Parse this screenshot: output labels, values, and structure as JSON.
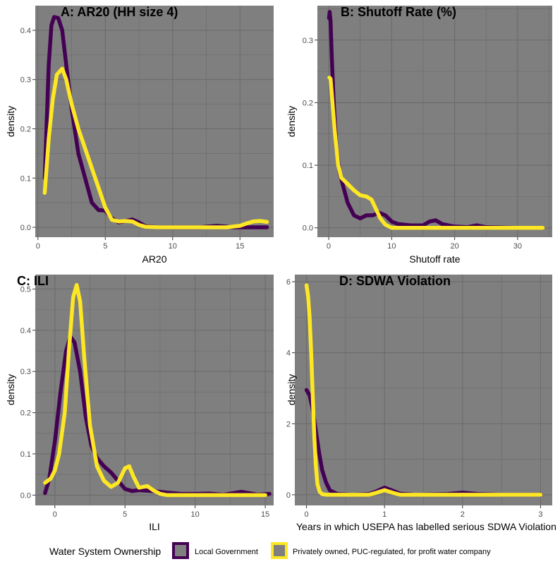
{
  "chart_data": [
    {
      "type": "line",
      "title": "A: AR20 (HH size 4)",
      "xlabel": "AR20",
      "ylabel": "density",
      "xlim": [
        -0.2,
        17.5
      ],
      "ylim": [
        -0.02,
        0.45
      ],
      "xticks": [
        0,
        5,
        10,
        15
      ],
      "yticks": [
        0.0,
        0.1,
        0.2,
        0.3,
        0.4
      ],
      "ytick_labels": [
        "0.0",
        "0.1",
        "0.2",
        "0.3",
        "0.4"
      ],
      "series": [
        {
          "name": "Local Government",
          "color": "#440154",
          "x": [
            0.5,
            0.8,
            1.0,
            1.2,
            1.5,
            1.8,
            2.1,
            2.5,
            3.0,
            3.5,
            4.0,
            4.5,
            5.0,
            5.5,
            6.0,
            6.5,
            7.0,
            7.5,
            8.0,
            9.0,
            10.0,
            12.0,
            13.3,
            14.5,
            16.0,
            17.0
          ],
          "y": [
            0.1,
            0.33,
            0.41,
            0.427,
            0.425,
            0.4,
            0.33,
            0.24,
            0.15,
            0.1,
            0.05,
            0.035,
            0.034,
            0.018,
            0.01,
            0.013,
            0.016,
            0.01,
            0.002,
            0.0,
            0.0,
            0.0,
            0.003,
            0.0,
            0.0,
            0.0
          ]
        },
        {
          "name": "Privately owned, PUC-regulated, for profit water company",
          "color": "#fde725",
          "x": [
            0.5,
            0.8,
            1.1,
            1.4,
            1.8,
            2.1,
            2.5,
            3.0,
            3.5,
            4.0,
            4.5,
            5.0,
            5.5,
            6.0,
            6.5,
            7.0,
            7.5,
            8.0,
            9.0,
            10.0,
            12.0,
            14.0,
            15.0,
            15.5,
            16.0,
            16.5,
            17.0
          ],
          "y": [
            0.07,
            0.18,
            0.26,
            0.31,
            0.322,
            0.3,
            0.25,
            0.2,
            0.16,
            0.12,
            0.08,
            0.04,
            0.015,
            0.012,
            0.013,
            0.012,
            0.005,
            0.001,
            0.0,
            0.0,
            0.0,
            0.0,
            0.003,
            0.008,
            0.012,
            0.013,
            0.011
          ]
        }
      ]
    },
    {
      "type": "line",
      "title": "B: Shutoff Rate (%)",
      "xlabel": "Shutoff rate",
      "ylabel": "density",
      "xlim": [
        -1.8,
        35.5
      ],
      "ylim": [
        -0.015,
        0.355
      ],
      "xticks": [
        0,
        10,
        20,
        30
      ],
      "yticks": [
        0.0,
        0.1,
        0.2,
        0.3
      ],
      "ytick_labels": [
        "0.0",
        "0.1",
        "0.2",
        "0.3"
      ],
      "series": [
        {
          "name": "Local Government",
          "color": "#440154",
          "x": [
            0.05,
            0.15,
            0.3,
            0.5,
            0.8,
            1.2,
            1.7,
            2.2,
            3.0,
            4.0,
            5.0,
            6.0,
            7.0,
            8.0,
            9.0,
            10.0,
            11.0,
            13.0,
            15.0,
            16.0,
            17.0,
            18.0,
            20.0,
            22.0,
            23.5,
            25.0,
            30.0,
            34.0
          ],
          "y": [
            0.335,
            0.345,
            0.33,
            0.27,
            0.2,
            0.13,
            0.09,
            0.07,
            0.04,
            0.02,
            0.015,
            0.02,
            0.02,
            0.024,
            0.02,
            0.01,
            0.006,
            0.004,
            0.004,
            0.01,
            0.012,
            0.006,
            0.002,
            0.001,
            0.004,
            0.001,
            0.0,
            0.0
          ]
        },
        {
          "name": "Privately owned, PUC-regulated, for profit water company",
          "color": "#fde725",
          "x": [
            0.1,
            0.3,
            0.6,
            1.0,
            1.5,
            2.0,
            2.5,
            3.0,
            4.0,
            5.0,
            6.0,
            6.8,
            7.5,
            8.2,
            9.0,
            10.0,
            12.0,
            15.0,
            20.0,
            25.0,
            30.0,
            34.0
          ],
          "y": [
            0.24,
            0.238,
            0.2,
            0.15,
            0.1,
            0.08,
            0.075,
            0.07,
            0.06,
            0.052,
            0.05,
            0.045,
            0.03,
            0.015,
            0.005,
            0.0,
            0.0,
            0.0,
            0.0,
            0.0,
            0.0,
            0.0
          ]
        }
      ]
    },
    {
      "type": "line",
      "title": "C: ILI",
      "xlabel": "ILI",
      "ylabel": "density",
      "xlim": [
        -1.4,
        15.6
      ],
      "ylim": [
        -0.025,
        0.535
      ],
      "xticks": [
        0,
        5,
        10,
        15
      ],
      "yticks": [
        0.0,
        0.1,
        0.2,
        0.3,
        0.4,
        0.5
      ],
      "ytick_labels": [
        "0.0",
        "0.1",
        "0.2",
        "0.3",
        "0.4",
        "0.5"
      ],
      "series": [
        {
          "name": "Local Government",
          "color": "#440154",
          "x": [
            -0.7,
            -0.4,
            0.0,
            0.4,
            0.8,
            1.1,
            1.4,
            1.8,
            2.2,
            2.6,
            3.0,
            3.5,
            4.0,
            4.5,
            5.0,
            5.5,
            6.0,
            7.0,
            8.0,
            9.0,
            10.0,
            11.0,
            12.0,
            13.3,
            14.5,
            15.3
          ],
          "y": [
            0.005,
            0.04,
            0.13,
            0.25,
            0.35,
            0.385,
            0.37,
            0.3,
            0.19,
            0.12,
            0.09,
            0.07,
            0.055,
            0.035,
            0.015,
            0.01,
            0.012,
            0.01,
            0.006,
            0.003,
            0.003,
            0.004,
            0.001,
            0.008,
            0.001,
            0.003
          ]
        },
        {
          "name": "Privately owned, PUC-regulated, for profit water company",
          "color": "#fde725",
          "x": [
            -0.7,
            -0.3,
            0.0,
            0.3,
            0.7,
            1.0,
            1.3,
            1.55,
            1.8,
            2.1,
            2.5,
            3.0,
            3.5,
            4.0,
            4.5,
            5.0,
            5.3,
            5.6,
            6.0,
            6.3,
            6.6,
            7.0,
            7.5,
            8.0,
            9.0,
            10.0,
            12.0,
            15.0
          ],
          "y": [
            0.03,
            0.04,
            0.06,
            0.1,
            0.2,
            0.35,
            0.48,
            0.51,
            0.47,
            0.33,
            0.17,
            0.07,
            0.035,
            0.02,
            0.03,
            0.065,
            0.07,
            0.045,
            0.018,
            0.02,
            0.022,
            0.012,
            0.003,
            0.0,
            0.0,
            0.0,
            0.0,
            0.0
          ]
        }
      ]
    },
    {
      "type": "line",
      "title": "D: SDWA Violation",
      "xlabel": "Years in which USEPA has labelled serious SDWA Violation",
      "ylabel": "density",
      "xlim": [
        -0.15,
        3.15
      ],
      "ylim": [
        -0.3,
        6.2
      ],
      "xticks": [
        0,
        1,
        2,
        3
      ],
      "yticks": [
        0,
        2,
        4,
        6
      ],
      "ytick_labels": [
        "0",
        "2",
        "4",
        "6"
      ],
      "series": [
        {
          "name": "Local Government",
          "color": "#440154",
          "x": [
            0.0,
            0.04,
            0.08,
            0.12,
            0.16,
            0.2,
            0.25,
            0.3,
            0.4,
            0.6,
            0.8,
            0.9,
            1.0,
            1.1,
            1.2,
            1.4,
            1.8,
            2.0,
            2.2,
            2.5,
            3.0
          ],
          "y": [
            2.95,
            2.8,
            2.4,
            1.8,
            1.2,
            0.7,
            0.35,
            0.12,
            0.02,
            0.0,
            0.02,
            0.1,
            0.2,
            0.12,
            0.03,
            0.0,
            0.02,
            0.06,
            0.02,
            0.0,
            0.0
          ]
        },
        {
          "name": "Privately owned, PUC-regulated, for profit water company",
          "color": "#fde725",
          "x": [
            0.0,
            0.02,
            0.04,
            0.06,
            0.08,
            0.1,
            0.12,
            0.14,
            0.17,
            0.2,
            0.25,
            0.3,
            0.5,
            0.8,
            0.9,
            1.0,
            1.1,
            1.2,
            1.5,
            2.0,
            2.5,
            3.0
          ],
          "y": [
            5.9,
            5.6,
            5.0,
            4.0,
            2.8,
            1.6,
            0.8,
            0.3,
            0.08,
            0.02,
            0.0,
            0.0,
            0.0,
            0.0,
            0.06,
            0.13,
            0.06,
            0.0,
            0.0,
            0.0,
            0.0,
            0.0
          ]
        }
      ]
    }
  ],
  "legend": {
    "title": "Water System Ownership",
    "items": [
      {
        "label": "Local Government",
        "color": "#440154"
      },
      {
        "label": "Privately owned, PUC-regulated, for profit water company",
        "color": "#fde725"
      }
    ]
  },
  "colors": {
    "panel_bg": "#7f7f7f",
    "grid": "#6b6b6b"
  }
}
